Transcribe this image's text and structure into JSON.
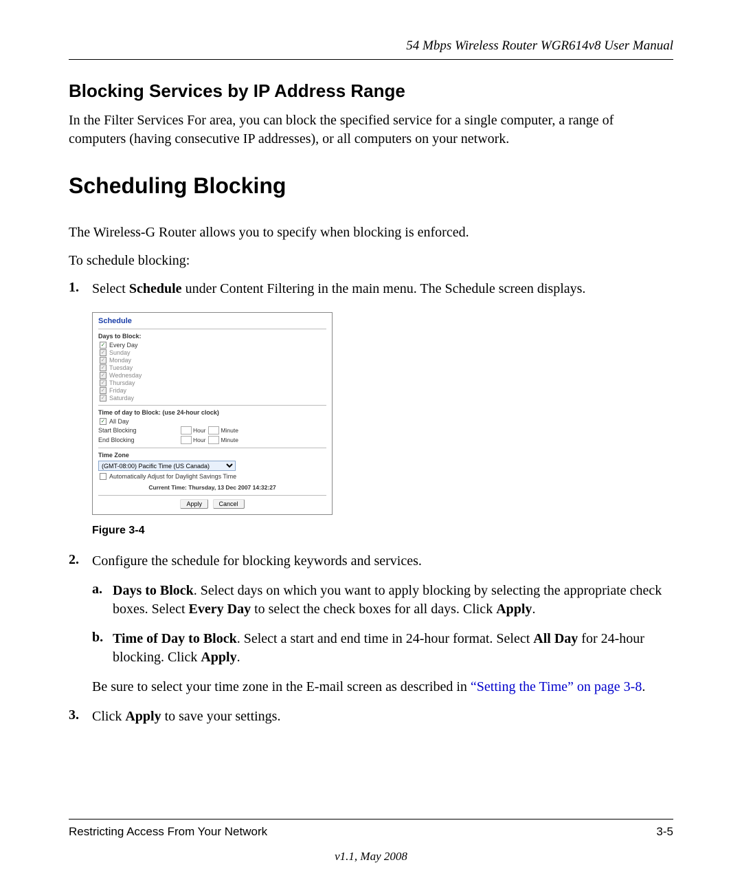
{
  "header": {
    "doc_title": "54 Mbps Wireless Router WGR614v8 User Manual"
  },
  "h2": "Blocking Services by IP Address Range",
  "intro_para": "In the Filter Services For area, you can block the specified service for a single computer, a range of computers (having consecutive IP addresses), or all computers on your network.",
  "h1": "Scheduling Blocking",
  "p1": "The Wireless-G Router allows you to specify when blocking is enforced.",
  "p2": "To schedule blocking:",
  "step1_prefix": "Select ",
  "step1_bold": "Schedule",
  "step1_suffix": " under Content Filtering in the main menu. The Schedule screen displays.",
  "figure": {
    "panel_title": "Schedule",
    "days_label": "Days to Block:",
    "days": [
      {
        "label": "Every Day",
        "checked": true,
        "disabled": false
      },
      {
        "label": "Sunday",
        "checked": true,
        "disabled": true
      },
      {
        "label": "Monday",
        "checked": true,
        "disabled": true
      },
      {
        "label": "Tuesday",
        "checked": true,
        "disabled": true
      },
      {
        "label": "Wednesday",
        "checked": true,
        "disabled": true
      },
      {
        "label": "Thursday",
        "checked": true,
        "disabled": true
      },
      {
        "label": "Friday",
        "checked": true,
        "disabled": true
      },
      {
        "label": "Saturday",
        "checked": true,
        "disabled": true
      }
    ],
    "time_label": "Time of day to Block: (use 24-hour clock)",
    "all_day": "All Day",
    "start_label": "Start Blocking",
    "end_label": "End Blocking",
    "hour": "Hour",
    "minute": "Minute",
    "tz_label": "Time Zone",
    "tz_value": "(GMT-08:00) Pacific Time (US Canada)",
    "dst_label": "Automatically Adjust for Daylight Savings Time",
    "current_time_lbl": "Current Time:  Thursday, 13 Dec 2007 14:32:27",
    "apply_btn": "Apply",
    "cancel_btn": "Cancel",
    "caption": "Figure 3-4"
  },
  "step2": "Configure the schedule for blocking keywords and services.",
  "step2a_bold1": "Days to Block",
  "step2a_mid": ". Select days on which you want to apply blocking by selecting the appropriate check boxes. Select ",
  "step2a_bold2": "Every Day",
  "step2a_mid2": " to select the check boxes for all days. Click ",
  "step2a_bold3": "Apply",
  "step2a_end": ".",
  "step2b_bold1": "Time of Day to Block",
  "step2b_mid": ". Select a start and end time in 24-hour format. Select ",
  "step2b_bold2": "All Day",
  "step2b_mid2": " for 24-hour blocking. Click ",
  "step2b_bold3": "Apply",
  "step2b_end": ".",
  "note_prefix": "Be sure to select your time zone in the E-mail screen as described in ",
  "note_link": "“Setting the Time” on page 3-8",
  "note_suffix": ".",
  "step3_prefix": "Click ",
  "step3_bold": "Apply",
  "step3_suffix": " to save your settings.",
  "footer": {
    "left": "Restricting Access From Your Network",
    "right": "3-5",
    "version": "v1.1, May 2008"
  },
  "colors": {
    "link": "#0000cc",
    "panel_title": "#1a3ea8"
  }
}
